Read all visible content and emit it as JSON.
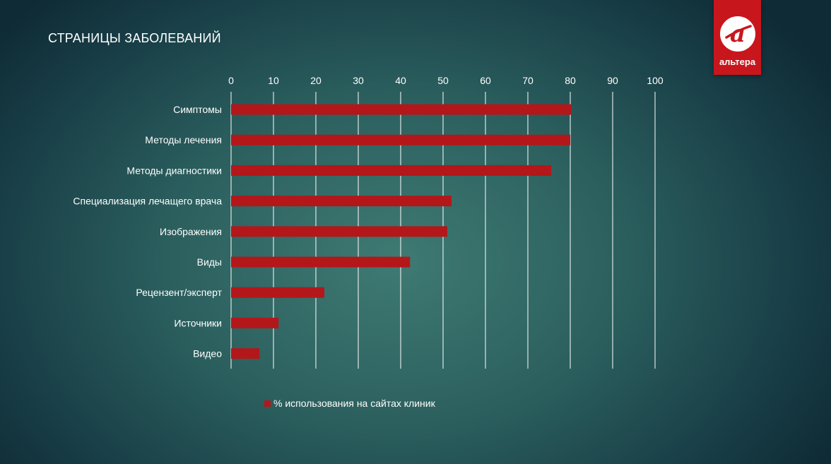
{
  "slide": {
    "title": "СТРАНИЦЫ ЗАБОЛЕВАНИЙ"
  },
  "logo": {
    "text": "альтера",
    "icon": "altera-a-logo-icon",
    "color": "#c8161d"
  },
  "colors": {
    "bar": "#b3171a",
    "grid": "#ffffff"
  },
  "chart_data": {
    "type": "bar",
    "orientation": "horizontal",
    "title": "",
    "xlabel": "",
    "ylabel": "",
    "xlim": [
      0,
      100
    ],
    "x_ticks": [
      "0",
      "10",
      "20",
      "30",
      "40",
      "50",
      "60",
      "70",
      "80",
      "90",
      "100"
    ],
    "axis_position": "top",
    "grid": true,
    "categories": [
      "Симптомы",
      "Методы лечения",
      "Методы диагностики",
      "Специализация лечащего врача",
      "Изображения",
      "Виды",
      "Рецензент/эксперт",
      "Источники",
      "Видео"
    ],
    "series": [
      {
        "name": "% использования на сайтах клиник",
        "values": [
          80.3,
          80,
          75.5,
          52,
          51,
          42.2,
          22,
          11.2,
          6.7
        ]
      }
    ],
    "legend_position": "bottom"
  }
}
